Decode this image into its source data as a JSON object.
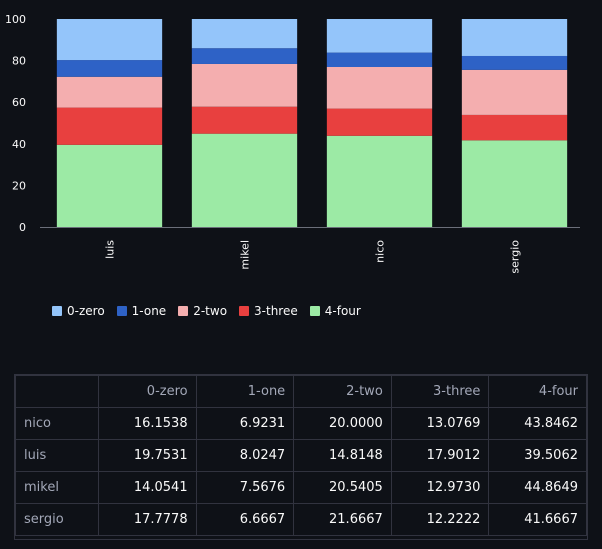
{
  "chart_data": {
    "type": "bar",
    "stacked": true,
    "normalized": true,
    "categories": [
      "luis",
      "mikel",
      "nico",
      "sergio"
    ],
    "series": [
      {
        "name": "4-four",
        "color": "#9ceaa5",
        "values": [
          39.5062,
          44.8649,
          43.8462,
          41.6667
        ]
      },
      {
        "name": "3-three",
        "color": "#e8403f",
        "values": [
          17.9012,
          12.973,
          13.0769,
          12.2222
        ]
      },
      {
        "name": "2-two",
        "color": "#f4aeaf",
        "values": [
          14.8148,
          20.5405,
          20.0,
          21.6667
        ]
      },
      {
        "name": "1-one",
        "color": "#2e62c6",
        "values": [
          8.0247,
          7.5676,
          6.9231,
          6.6667
        ]
      },
      {
        "name": "0-zero",
        "color": "#94c5fa",
        "values": [
          19.7531,
          14.0541,
          16.1538,
          17.7778
        ]
      }
    ],
    "ylim": [
      0,
      100
    ],
    "yticks": [
      "0",
      "20",
      "40",
      "60",
      "80",
      "100"
    ],
    "legend_position": "bottom-left"
  },
  "legend": [
    {
      "label": "0-zero",
      "color": "#94c5fa"
    },
    {
      "label": "1-one",
      "color": "#2e62c6"
    },
    {
      "label": "2-two",
      "color": "#f4aeaf"
    },
    {
      "label": "3-three",
      "color": "#e8403f"
    },
    {
      "label": "4-four",
      "color": "#9ceaa5"
    }
  ],
  "table": {
    "columns": [
      "",
      "0-zero",
      "1-one",
      "2-two",
      "3-three",
      "4-four"
    ],
    "rows": [
      {
        "name": "nico",
        "values": [
          "16.1538",
          "6.9231",
          "20.0000",
          "13.0769",
          "43.8462"
        ]
      },
      {
        "name": "luis",
        "values": [
          "19.7531",
          "8.0247",
          "14.8148",
          "17.9012",
          "39.5062"
        ]
      },
      {
        "name": "mikel",
        "values": [
          "14.0541",
          "7.5676",
          "20.5405",
          "12.9730",
          "44.8649"
        ]
      },
      {
        "name": "sergio",
        "values": [
          "17.7778",
          "6.6667",
          "21.6667",
          "12.2222",
          "41.6667"
        ]
      }
    ]
  }
}
